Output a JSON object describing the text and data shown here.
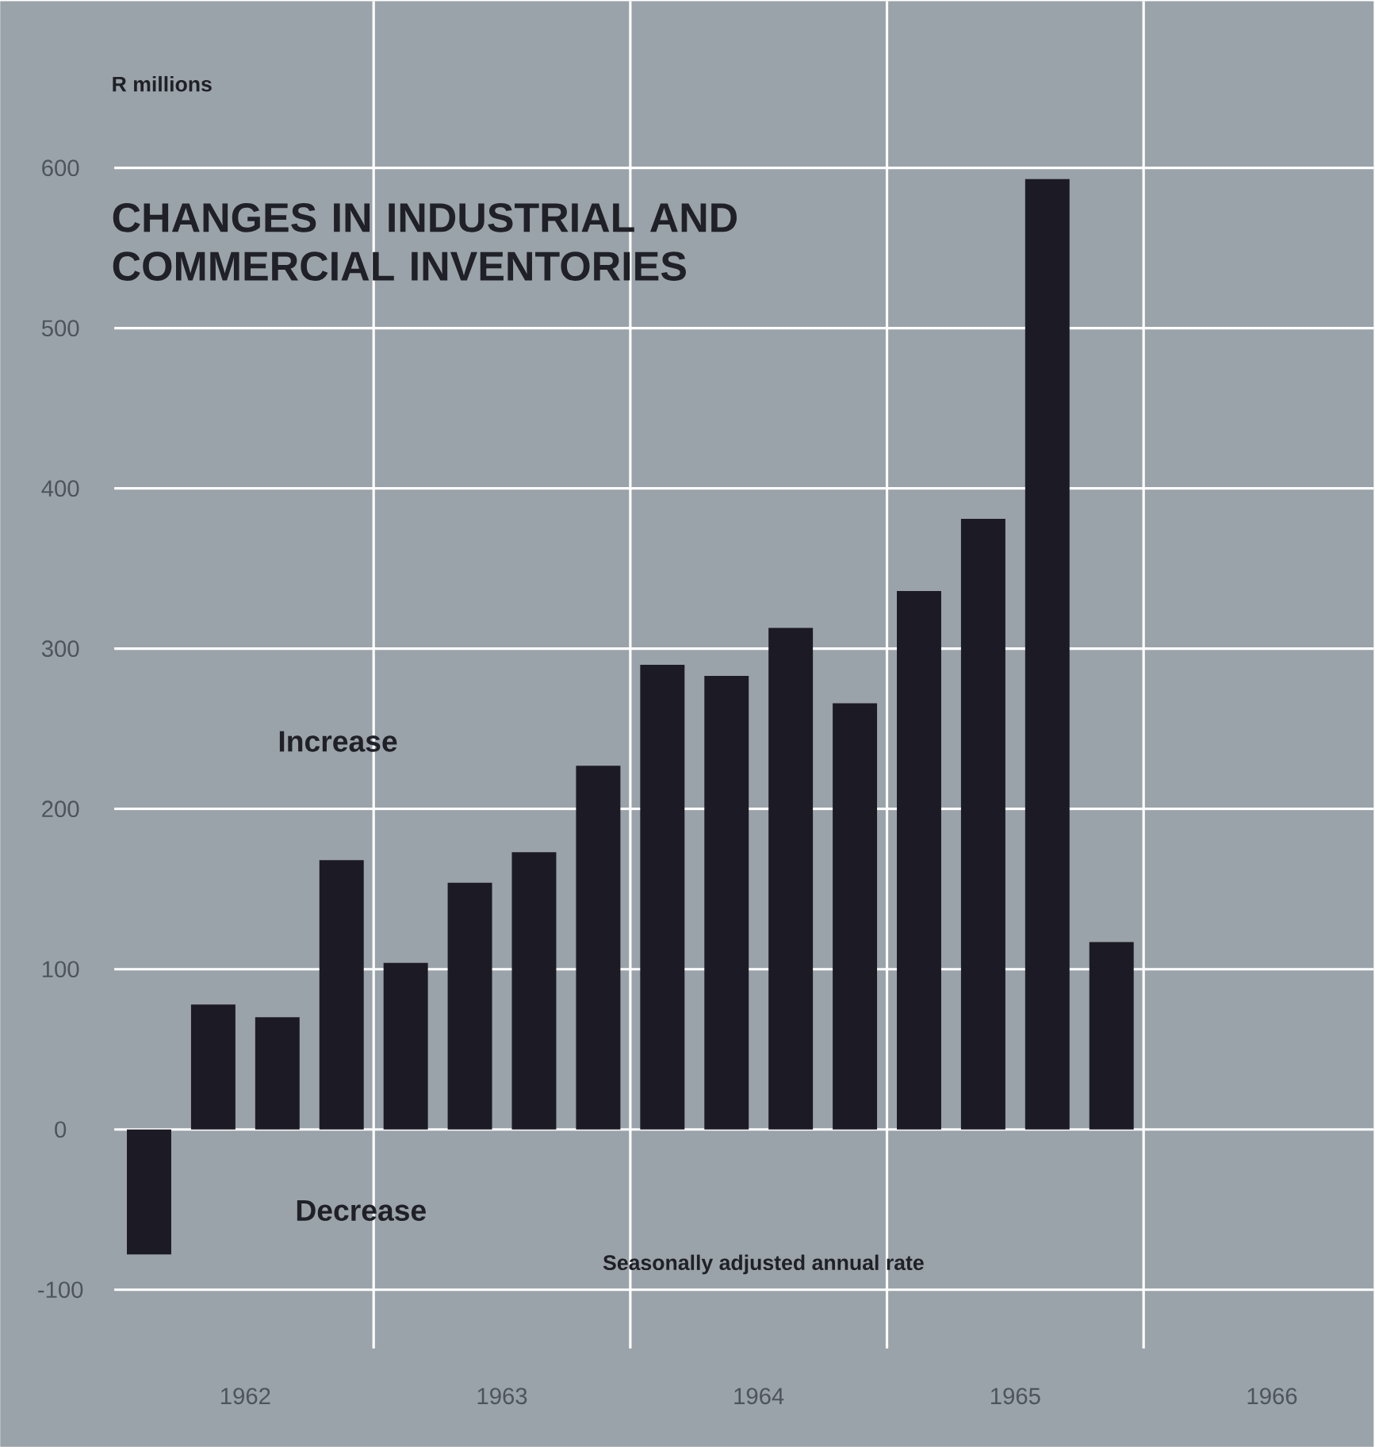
{
  "chart_data": {
    "type": "bar",
    "title": "CHANGES IN INDUSTRIAL AND COMMERCIAL INVENTORIES",
    "ylabel": "R millions",
    "annotations": [
      "Increase",
      "Decrease",
      "Seasonally adjusted annual rate"
    ],
    "x": [
      1962.125,
      1962.375,
      1962.625,
      1962.875,
      1963.125,
      1963.375,
      1963.625,
      1963.875,
      1964.125,
      1964.375,
      1964.625,
      1964.875,
      1965.125,
      1965.375,
      1965.625,
      1965.875
    ],
    "values": [
      -78,
      78,
      70,
      168,
      104,
      154,
      173,
      227,
      290,
      283,
      313,
      266,
      336,
      381,
      593,
      117
    ],
    "color": "#1c1a24",
    "xlim": [
      1961.545,
      1966.897
    ],
    "ylim": [
      -198,
      704
    ],
    "xticks": [
      {
        "value": 1962.5,
        "label": "1962"
      },
      {
        "value": 1963,
        "label": null
      },
      {
        "value": 1963.5,
        "label": "1963"
      },
      {
        "value": 1964,
        "label": null
      },
      {
        "value": 1964.5,
        "label": "1964"
      },
      {
        "value": 1965,
        "label": null
      },
      {
        "value": 1965.5,
        "label": "1965"
      },
      {
        "value": 1966,
        "label": null
      },
      {
        "value": 1966.5,
        "label": "1966"
      }
    ],
    "yticks": [
      -100,
      0,
      100,
      200,
      300,
      400,
      500,
      600
    ],
    "grid": true
  }
}
